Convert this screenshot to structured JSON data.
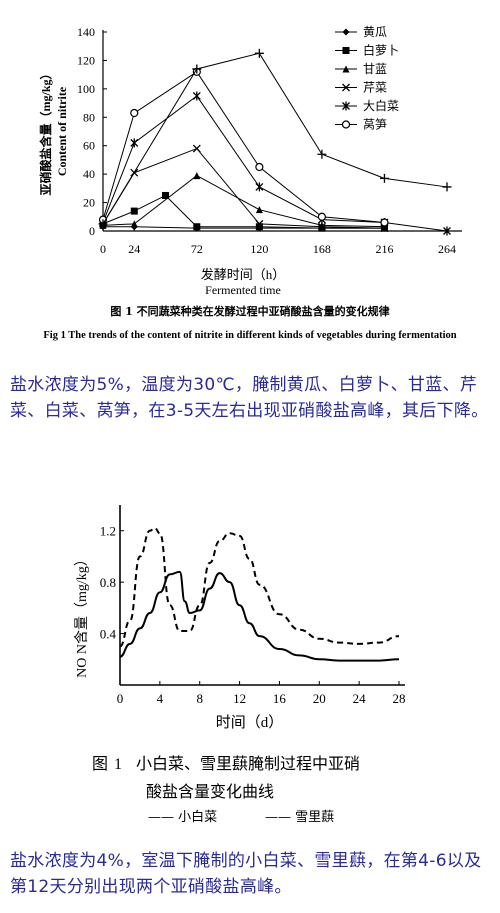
{
  "chart_data": [
    {
      "type": "line",
      "title": "不同蔬菜种类在发酵过程中亚硝酸盐含量的变化规律",
      "ylabel_cn": "亚硝酸盐含量（mg/kg）",
      "ylabel_en": "Content of nitrite",
      "xlabel_cn": "发酵时间（h）",
      "xlabel_en": "Fermented time",
      "x": [
        0,
        24,
        48,
        72,
        120,
        168,
        216,
        264
      ],
      "xticks": [
        0,
        24,
        72,
        120,
        168,
        216,
        264
      ],
      "yticks": [
        0,
        20,
        40,
        60,
        80,
        100,
        120,
        140
      ],
      "xlim": [
        0,
        264
      ],
      "ylim": [
        0,
        140
      ],
      "legend_position": "top-right",
      "series": [
        {
          "name": "黄瓜",
          "marker": "diamond",
          "x": [
            0,
            24,
            72,
            120,
            168,
            216
          ],
          "values": [
            3,
            3,
            2,
            2,
            2,
            2
          ]
        },
        {
          "name": "白萝卜",
          "marker": "square",
          "x": [
            0,
            24,
            48,
            72,
            120,
            168,
            216
          ],
          "values": [
            5,
            14,
            25,
            3,
            3,
            2,
            2
          ]
        },
        {
          "name": "甘蓝",
          "marker": "triangle",
          "x": [
            0,
            24,
            72,
            120,
            168,
            216
          ],
          "values": [
            4,
            5,
            39,
            15,
            4,
            3
          ]
        },
        {
          "name": "芹菜",
          "marker": "x",
          "x": [
            0,
            24,
            72,
            120,
            168,
            216
          ],
          "values": [
            5,
            41,
            58,
            5,
            3,
            2
          ]
        },
        {
          "name": "大白菜",
          "marker": "asterisk",
          "x": [
            0,
            24,
            72,
            120,
            168,
            216,
            264
          ],
          "values": [
            6,
            62,
            95,
            31,
            8,
            6,
            0
          ]
        },
        {
          "name": "莴笋",
          "marker": "circle",
          "x": [
            0,
            24,
            72,
            120,
            168,
            216
          ],
          "values": [
            8,
            83,
            112,
            45,
            10,
            6
          ]
        },
        {
          "name": "",
          "marker": "cross",
          "x": [
            0,
            72,
            120,
            168,
            216,
            264
          ],
          "values": [
            5,
            114,
            125,
            54,
            37,
            31
          ]
        }
      ],
      "caption_cn": "图 1  不同蔬菜种类在发酵过程中亚硝酸盐含量的变化规律",
      "caption_en": "Fig 1  The trends of the content of nitrite in different kinds of vegetables during fermentation"
    },
    {
      "type": "line",
      "ylabel": "NO  N含量（mg/kg）",
      "xlabel": "时间（d）",
      "xticks": [
        0,
        4,
        8,
        12,
        16,
        20,
        24,
        28
      ],
      "yticks": [
        0.4,
        0.8,
        1.2
      ],
      "xlim": [
        0,
        28
      ],
      "ylim": [
        0,
        1.4
      ],
      "series": [
        {
          "name": "小白菜",
          "style": "solid",
          "x": [
            0,
            1,
            2,
            3,
            4,
            5,
            6,
            6.5,
            7,
            8,
            9,
            10,
            11,
            12,
            13,
            14,
            16,
            18,
            20,
            22,
            24,
            26,
            28
          ],
          "values": [
            0.22,
            0.32,
            0.44,
            0.56,
            0.72,
            0.86,
            0.88,
            0.65,
            0.56,
            0.58,
            0.75,
            0.87,
            0.8,
            0.62,
            0.48,
            0.38,
            0.28,
            0.23,
            0.2,
            0.19,
            0.19,
            0.19,
            0.2
          ]
        },
        {
          "name": "雪里蕻",
          "style": "dashed",
          "x": [
            0,
            1,
            2,
            3,
            3.5,
            4,
            5,
            6,
            7,
            8,
            9,
            10,
            11,
            12,
            13,
            14,
            16,
            18,
            20,
            22,
            24,
            26,
            28
          ],
          "values": [
            0.3,
            0.5,
            1.0,
            1.2,
            1.22,
            1.18,
            0.62,
            0.42,
            0.42,
            0.62,
            0.95,
            1.12,
            1.18,
            1.16,
            0.98,
            0.78,
            0.55,
            0.43,
            0.36,
            0.33,
            0.32,
            0.33,
            0.38
          ]
        }
      ],
      "caption_num": "1",
      "caption_line1": "小白菜、雪里蕻腌制过程中亚硝",
      "caption_line2": "酸盐含量变化曲线",
      "legend_solid": "小白菜",
      "legend_dashed": "雪里蕻"
    }
  ],
  "text": {
    "para1": "盐水浓度为5%，温度为30℃，腌制黄瓜、白萝卜、甘蓝、芹菜、白菜、莴笋，在3-5天左右出现亚硝酸盐高峰，其后下降。",
    "para2": "盐水浓度为4%，室温下腌制的小白菜、雪里蕻，在第4-6以及第12天分别出现两个亚硝酸盐高峰。"
  },
  "colors": {
    "text_accent": "#2a2a9a",
    "ink": "#000000"
  }
}
